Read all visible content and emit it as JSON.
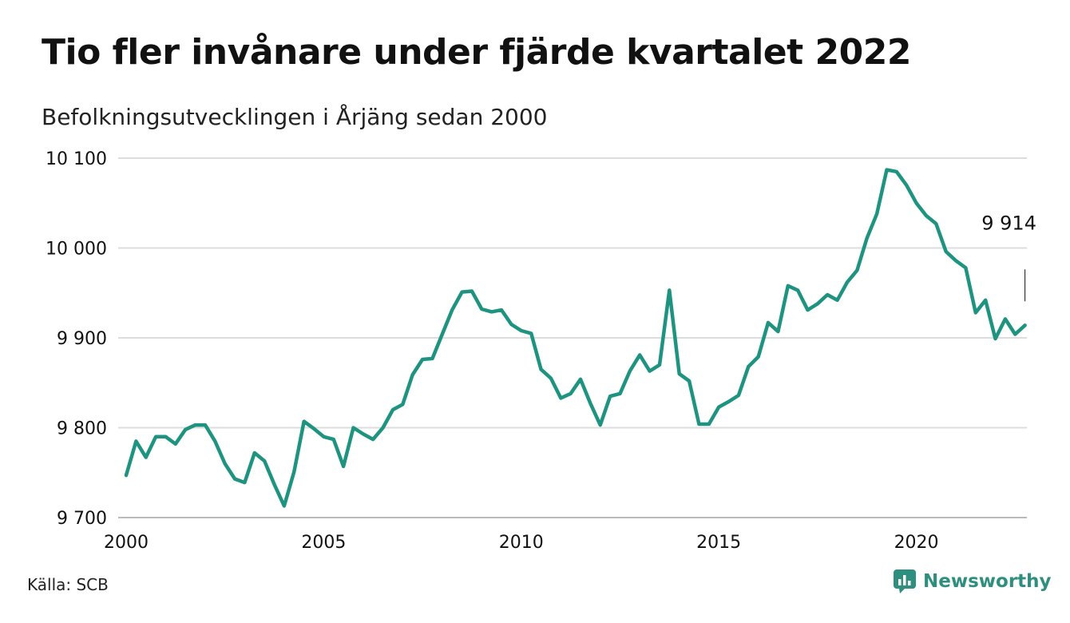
{
  "header": {
    "title": "Tio fler invånare under fjärde kvartalet 2022",
    "subtitle": "Befolkningsutvecklingen i Årjäng sedan 2000"
  },
  "footer": {
    "source": "Källa: SCB",
    "brand": "Newsworthy",
    "brand_icon": "newsworthy-logo-icon"
  },
  "colors": {
    "line": "#1e9480",
    "grid": "#dddddd",
    "text": "#111111",
    "brand": "#2f8f7f"
  },
  "chart_data": {
    "type": "line",
    "title": "Tio fler invånare under fjärde kvartalet 2022",
    "subtitle": "Befolkningsutvecklingen i Årjäng sedan 2000",
    "xlim": [
      2000,
      2023
    ],
    "ylim": [
      9700,
      10100
    ],
    "grid": true,
    "x_ticks": [
      2000,
      2005,
      2010,
      2015,
      2020
    ],
    "x_tick_labels": [
      "2000",
      "2005",
      "2010",
      "2015",
      "2020"
    ],
    "y_ticks": [
      9700,
      9800,
      9900,
      10000,
      10100
    ],
    "y_tick_labels": [
      "9 700",
      "9 800",
      "9 900",
      "10 000",
      "10 100"
    ],
    "annotation": {
      "label": "9 914",
      "x": 2022.75,
      "y": 9914
    },
    "series": [
      {
        "x": [
          2000.0,
          2000.25,
          2000.5,
          2000.75,
          2001.0,
          2001.25,
          2001.5,
          2001.75,
          2002.0,
          2002.25,
          2002.5,
          2002.75,
          2003.0,
          2003.25,
          2003.5,
          2003.75,
          2004.0,
          2004.25,
          2004.5,
          2004.75,
          2005.0,
          2005.25,
          2005.5,
          2005.75,
          2006.0,
          2006.25,
          2006.5,
          2006.75,
          2007.0,
          2007.25,
          2007.5,
          2007.75,
          2008.0,
          2008.25,
          2008.5,
          2008.75,
          2009.0,
          2009.25,
          2009.5,
          2009.75,
          2010.0,
          2010.25,
          2010.5,
          2010.75,
          2011.0,
          2011.25,
          2011.5,
          2011.75,
          2012.0,
          2012.25,
          2012.5,
          2012.75,
          2013.0,
          2013.25,
          2013.5,
          2013.75,
          2014.0,
          2014.25,
          2014.5,
          2014.75,
          2015.0,
          2015.25,
          2015.5,
          2015.75,
          2016.0,
          2016.25,
          2016.5,
          2016.75,
          2017.0,
          2017.25,
          2017.5,
          2017.75,
          2018.0,
          2018.25,
          2018.5,
          2018.75,
          2019.0,
          2019.25,
          2019.5,
          2019.75,
          2020.0,
          2020.25,
          2020.5,
          2020.75,
          2021.0,
          2021.25,
          2021.5,
          2021.75,
          2022.0,
          2022.25,
          2022.5,
          2022.75
        ],
        "values": [
          9747,
          9785,
          9767,
          9790,
          9790,
          9782,
          9798,
          9803,
          9803,
          9785,
          9760,
          9743,
          9739,
          9772,
          9763,
          9737,
          9713,
          9751,
          9807,
          9799,
          9790,
          9787,
          9757,
          9800,
          9793,
          9787,
          9800,
          9820,
          9826,
          9859,
          9876,
          9877,
          9904,
          9931,
          9951,
          9952,
          9932,
          9929,
          9931,
          9915,
          9908,
          9905,
          9865,
          9855,
          9833,
          9838,
          9854,
          9827,
          9803,
          9835,
          9838,
          9863,
          9881,
          9863,
          9870,
          9953,
          9860,
          9852,
          9804,
          9804,
          9823,
          9829,
          9836,
          9868,
          9879,
          9917,
          9907,
          9958,
          9953,
          9931,
          9938,
          9948,
          9942,
          9962,
          9975,
          10011,
          10038,
          10087,
          10085,
          10070,
          10050,
          10036,
          10027,
          9996,
          9986,
          9978,
          9928,
          9942,
          9899,
          9921,
          9904,
          9914
        ]
      }
    ]
  }
}
